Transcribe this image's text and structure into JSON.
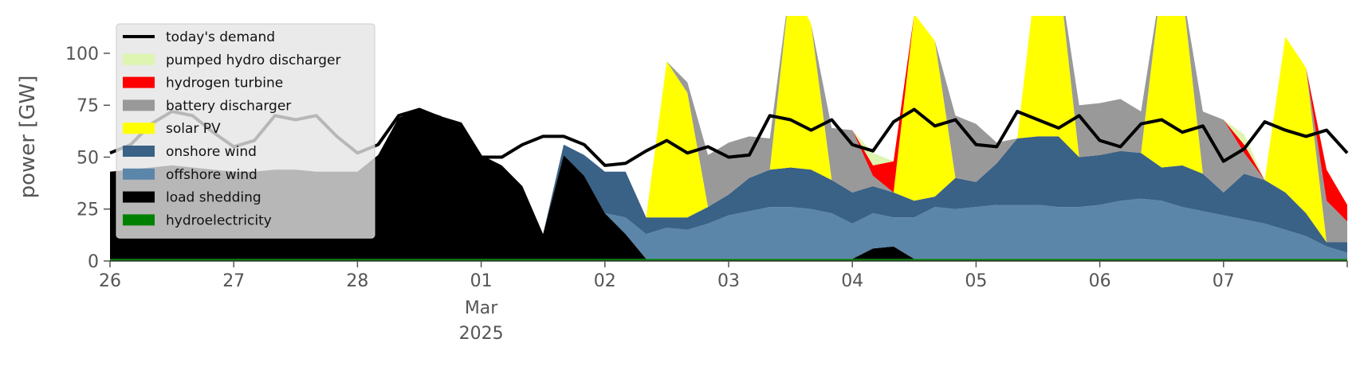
{
  "chart_data": {
    "type": "area",
    "title": "",
    "ylabel": "power [GW]",
    "xlabel": "",
    "ylim": [
      0,
      118
    ],
    "xlim": [
      "2025-02-26T00:00",
      "2025-03-08T00:00"
    ],
    "grid": false,
    "legend_placement": "top-left",
    "yticks": [
      0,
      25,
      50,
      75,
      100
    ],
    "xticks": [
      {
        "at": "2025-02-26",
        "label": "26"
      },
      {
        "at": "2025-02-27",
        "label": "27"
      },
      {
        "at": "2025-02-28",
        "label": "28"
      },
      {
        "at": "2025-03-01",
        "label": "01",
        "sublabels": [
          "Mar",
          "2025"
        ]
      },
      {
        "at": "2025-03-02",
        "label": "02"
      },
      {
        "at": "2025-03-03",
        "label": "03"
      },
      {
        "at": "2025-03-04",
        "label": "04"
      },
      {
        "at": "2025-03-05",
        "label": "05"
      },
      {
        "at": "2025-03-06",
        "label": "06"
      },
      {
        "at": "2025-03-07",
        "label": "07"
      }
    ],
    "x": [
      "2025-02-26T00:00",
      "2025-02-26T04:00",
      "2025-02-26T08:00",
      "2025-02-26T12:00",
      "2025-02-26T16:00",
      "2025-02-26T20:00",
      "2025-02-27T00:00",
      "2025-02-27T04:00",
      "2025-02-27T08:00",
      "2025-02-27T12:00",
      "2025-02-27T16:00",
      "2025-02-27T20:00",
      "2025-02-28T00:00",
      "2025-02-28T04:00",
      "2025-02-28T08:00",
      "2025-02-28T12:00",
      "2025-02-28T16:00",
      "2025-02-28T20:00",
      "2025-03-01T00:00",
      "2025-03-01T04:00",
      "2025-03-01T08:00",
      "2025-03-01T12:00",
      "2025-03-01T16:00",
      "2025-03-01T20:00",
      "2025-03-02T00:00",
      "2025-03-02T04:00",
      "2025-03-02T08:00",
      "2025-03-02T12:00",
      "2025-03-02T16:00",
      "2025-03-02T20:00",
      "2025-03-03T00:00",
      "2025-03-03T04:00",
      "2025-03-03T08:00",
      "2025-03-03T12:00",
      "2025-03-03T16:00",
      "2025-03-03T20:00",
      "2025-03-04T00:00",
      "2025-03-04T04:00",
      "2025-03-04T08:00",
      "2025-03-04T12:00",
      "2025-03-04T16:00",
      "2025-03-04T20:00",
      "2025-03-05T00:00",
      "2025-03-05T04:00",
      "2025-03-05T08:00",
      "2025-03-05T12:00",
      "2025-03-05T16:00",
      "2025-03-05T20:00",
      "2025-03-06T00:00",
      "2025-03-06T04:00",
      "2025-03-06T08:00",
      "2025-03-06T12:00",
      "2025-03-06T16:00",
      "2025-03-06T20:00",
      "2025-03-07T00:00",
      "2025-03-07T04:00",
      "2025-03-07T08:00",
      "2025-03-07T12:00",
      "2025-03-07T16:00",
      "2025-03-07T20:00",
      "2025-03-08T00:00"
    ],
    "series": [
      {
        "name": "hydroelectricity",
        "color": "#008000",
        "values": [
          1,
          1,
          1,
          1,
          1,
          1,
          1,
          1,
          1,
          1,
          1,
          1,
          1,
          1,
          1,
          1,
          1,
          1,
          1,
          1,
          1,
          1,
          1,
          1,
          1,
          1,
          1,
          1,
          1,
          1,
          1,
          1,
          1,
          1,
          1,
          1,
          1,
          1,
          1,
          1,
          1,
          1,
          1,
          1,
          1,
          1,
          1,
          1,
          1,
          1,
          1,
          1,
          1,
          1,
          1,
          1,
          1,
          1,
          1,
          1,
          1
        ]
      },
      {
        "name": "load shedding",
        "color": "#000000",
        "values": [
          42,
          43,
          44,
          45,
          44,
          43,
          42,
          42,
          43,
          43,
          42,
          42,
          42,
          50,
          68,
          72,
          69,
          64,
          50,
          45,
          35,
          12,
          50,
          40,
          22,
          12,
          0,
          0,
          0,
          0,
          0,
          0,
          0,
          0,
          0,
          0,
          0,
          5,
          6,
          0,
          0,
          0,
          0,
          0,
          0,
          0,
          0,
          0,
          0,
          0,
          0,
          0,
          0,
          0,
          0,
          0,
          0,
          0,
          0,
          0,
          0
        ]
      },
      {
        "name": "offshore wind",
        "color": "#5b86aa",
        "values": [
          0,
          0,
          0,
          0,
          0,
          0,
          0,
          0,
          0,
          0,
          0,
          0,
          0,
          0,
          0,
          0,
          0,
          0,
          0,
          0,
          0,
          0,
          0,
          0,
          0,
          8,
          12,
          15,
          14,
          17,
          21,
          23,
          25,
          25,
          24,
          22,
          17,
          17,
          14,
          20,
          25,
          24,
          25,
          26,
          26,
          26,
          25,
          25,
          26,
          28,
          29,
          28,
          25,
          23,
          21,
          19,
          17,
          14,
          11,
          6,
          3
        ]
      },
      {
        "name": "onshore wind",
        "color": "#3a6186",
        "values": [
          0,
          0,
          0,
          0,
          0,
          0,
          0,
          0,
          0,
          0,
          0,
          0,
          0,
          0,
          0,
          0,
          0,
          0,
          0,
          0,
          0,
          0,
          5,
          10,
          20,
          22,
          8,
          5,
          6,
          8,
          10,
          16,
          18,
          19,
          19,
          16,
          15,
          13,
          12,
          8,
          5,
          15,
          12,
          20,
          32,
          33,
          34,
          24,
          24,
          24,
          22,
          16,
          20,
          18,
          11,
          22,
          21,
          18,
          11,
          2,
          5
        ]
      },
      {
        "name": "solar PV",
        "color": "#ffff00",
        "values": [
          0,
          0,
          0,
          0,
          0,
          0,
          0,
          0,
          0,
          0,
          0,
          0,
          0,
          0,
          0,
          0,
          0,
          0,
          0,
          0,
          0,
          0,
          0,
          0,
          0,
          0,
          0,
          75,
          60,
          0,
          0,
          0,
          0,
          90,
          70,
          0,
          0,
          0,
          0,
          90,
          75,
          0,
          0,
          0,
          0,
          85,
          80,
          0,
          0,
          0,
          0,
          90,
          85,
          0,
          0,
          0,
          0,
          75,
          70,
          0,
          0
        ]
      },
      {
        "name": "battery discharger",
        "color": "#999999",
        "values": [
          0,
          0,
          0,
          0,
          0,
          0,
          0,
          0,
          0,
          0,
          0,
          0,
          0,
          0,
          0,
          0,
          0,
          0,
          0,
          0,
          0,
          0,
          0,
          0,
          0,
          0,
          0,
          0,
          5,
          25,
          25,
          20,
          15,
          0,
          0,
          25,
          30,
          5,
          0,
          0,
          0,
          30,
          28,
          10,
          0,
          0,
          0,
          25,
          25,
          25,
          20,
          0,
          0,
          30,
          35,
          10,
          0,
          0,
          0,
          20,
          10
        ]
      },
      {
        "name": "hydrogen turbine",
        "color": "#ff0000",
        "values": [
          0,
          0,
          0,
          0,
          0,
          0,
          0,
          0,
          0,
          0,
          0,
          0,
          0,
          0,
          0,
          0,
          0,
          0,
          0,
          0,
          0,
          0,
          0,
          0,
          0,
          0,
          0,
          0,
          0,
          0,
          0,
          0,
          0,
          0,
          0,
          0,
          0,
          5,
          15,
          0,
          0,
          0,
          0,
          0,
          0,
          0,
          0,
          0,
          0,
          0,
          0,
          0,
          0,
          0,
          0,
          4,
          0,
          0,
          0,
          15,
          8
        ]
      },
      {
        "name": "pumped hydro discharger",
        "color": "#ddf5b0",
        "values": [
          0,
          0,
          0,
          0,
          0,
          0,
          0,
          0,
          0,
          0,
          0,
          0,
          0,
          0,
          0,
          0,
          0,
          0,
          0,
          0,
          0,
          0,
          0,
          0,
          0,
          0,
          0,
          0,
          0,
          0,
          0,
          0,
          0,
          0,
          0,
          0,
          0,
          6,
          0,
          0,
          0,
          0,
          0,
          0,
          0,
          0,
          0,
          0,
          0,
          0,
          0,
          0,
          0,
          0,
          0,
          5,
          0,
          0,
          0,
          0,
          0
        ]
      },
      {
        "name": "today's demand",
        "color": "#000000",
        "kind": "line",
        "values": [
          52,
          56,
          66,
          72,
          70,
          62,
          55,
          58,
          70,
          68,
          70,
          60,
          52,
          56,
          70,
          73,
          69,
          66,
          50,
          50,
          56,
          60,
          60,
          56,
          46,
          47,
          53,
          58,
          52,
          55,
          50,
          51,
          70,
          68,
          63,
          68,
          56,
          53,
          67,
          73,
          65,
          68,
          56,
          55,
          72,
          68,
          64,
          70,
          58,
          55,
          66,
          68,
          62,
          65,
          48,
          54,
          67,
          63,
          60,
          63,
          52
        ]
      }
    ]
  }
}
